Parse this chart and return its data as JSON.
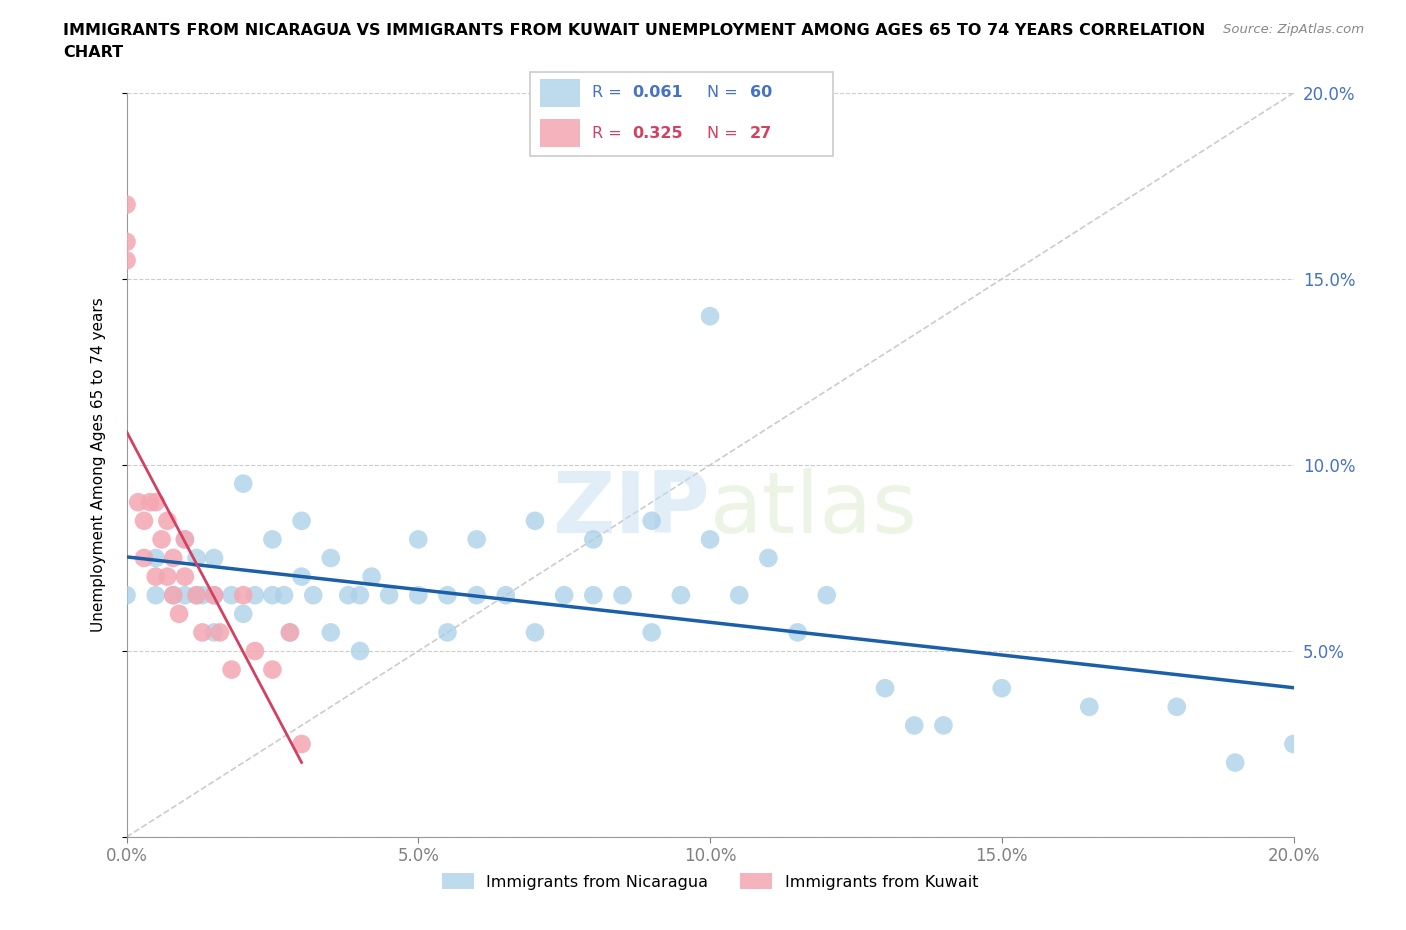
{
  "title_line1": "IMMIGRANTS FROM NICARAGUA VS IMMIGRANTS FROM KUWAIT UNEMPLOYMENT AMONG AGES 65 TO 74 YEARS CORRELATION",
  "title_line2": "CHART",
  "ylabel": "Unemployment Among Ages 65 to 74 years",
  "source": "Source: ZipAtlas.com",
  "xlim": [
    0.0,
    0.2
  ],
  "ylim": [
    0.0,
    0.2
  ],
  "xticks": [
    0.0,
    0.05,
    0.1,
    0.15,
    0.2
  ],
  "yticks": [
    0.05,
    0.1,
    0.15,
    0.2
  ],
  "xticklabels": [
    "0.0%",
    "5.0%",
    "10.0%",
    "15.0%",
    "20.0%"
  ],
  "yticklabels_right": [
    "5.0%",
    "10.0%",
    "15.0%",
    "20.0%"
  ],
  "nicaragua_color": "#a8cfe8",
  "kuwait_color": "#f4a7b2",
  "nicaragua_R": 0.061,
  "nicaragua_N": 60,
  "kuwait_R": 0.325,
  "kuwait_N": 27,
  "trend_nicaragua_color": "#1a5fa8",
  "trend_kuwait_color": "#d44060",
  "tick_color": "#4472c4",
  "watermark_color": "#c8dff0",
  "nicaragua_x": [
    0.0,
    0.005,
    0.005,
    0.008,
    0.01,
    0.01,
    0.012,
    0.012,
    0.013,
    0.015,
    0.015,
    0.015,
    0.018,
    0.02,
    0.02,
    0.022,
    0.025,
    0.025,
    0.027,
    0.028,
    0.03,
    0.03,
    0.032,
    0.035,
    0.035,
    0.038,
    0.04,
    0.04,
    0.042,
    0.045,
    0.05,
    0.05,
    0.055,
    0.055,
    0.06,
    0.06,
    0.065,
    0.07,
    0.07,
    0.075,
    0.08,
    0.08,
    0.085,
    0.09,
    0.09,
    0.095,
    0.1,
    0.1,
    0.105,
    0.11,
    0.115,
    0.12,
    0.13,
    0.135,
    0.14,
    0.15,
    0.165,
    0.18,
    0.19,
    0.2
  ],
  "nicaragua_y": [
    0.065,
    0.075,
    0.065,
    0.065,
    0.08,
    0.065,
    0.075,
    0.065,
    0.065,
    0.075,
    0.065,
    0.055,
    0.065,
    0.095,
    0.06,
    0.065,
    0.08,
    0.065,
    0.065,
    0.055,
    0.085,
    0.07,
    0.065,
    0.075,
    0.055,
    0.065,
    0.065,
    0.05,
    0.07,
    0.065,
    0.065,
    0.08,
    0.065,
    0.055,
    0.065,
    0.08,
    0.065,
    0.085,
    0.055,
    0.065,
    0.08,
    0.065,
    0.065,
    0.085,
    0.055,
    0.065,
    0.14,
    0.08,
    0.065,
    0.075,
    0.055,
    0.065,
    0.04,
    0.03,
    0.03,
    0.04,
    0.035,
    0.035,
    0.02,
    0.025
  ],
  "kuwait_x": [
    0.0,
    0.0,
    0.002,
    0.003,
    0.003,
    0.005,
    0.005,
    0.007,
    0.007,
    0.008,
    0.009,
    0.01,
    0.01,
    0.012,
    0.013,
    0.015,
    0.016,
    0.018,
    0.02,
    0.022,
    0.025,
    0.028,
    0.03,
    0.0,
    0.004,
    0.006,
    0.008
  ],
  "kuwait_y": [
    0.17,
    0.16,
    0.09,
    0.085,
    0.075,
    0.09,
    0.07,
    0.085,
    0.07,
    0.075,
    0.06,
    0.08,
    0.07,
    0.065,
    0.055,
    0.065,
    0.055,
    0.045,
    0.065,
    0.05,
    0.045,
    0.055,
    0.025,
    0.155,
    0.09,
    0.08,
    0.065
  ]
}
